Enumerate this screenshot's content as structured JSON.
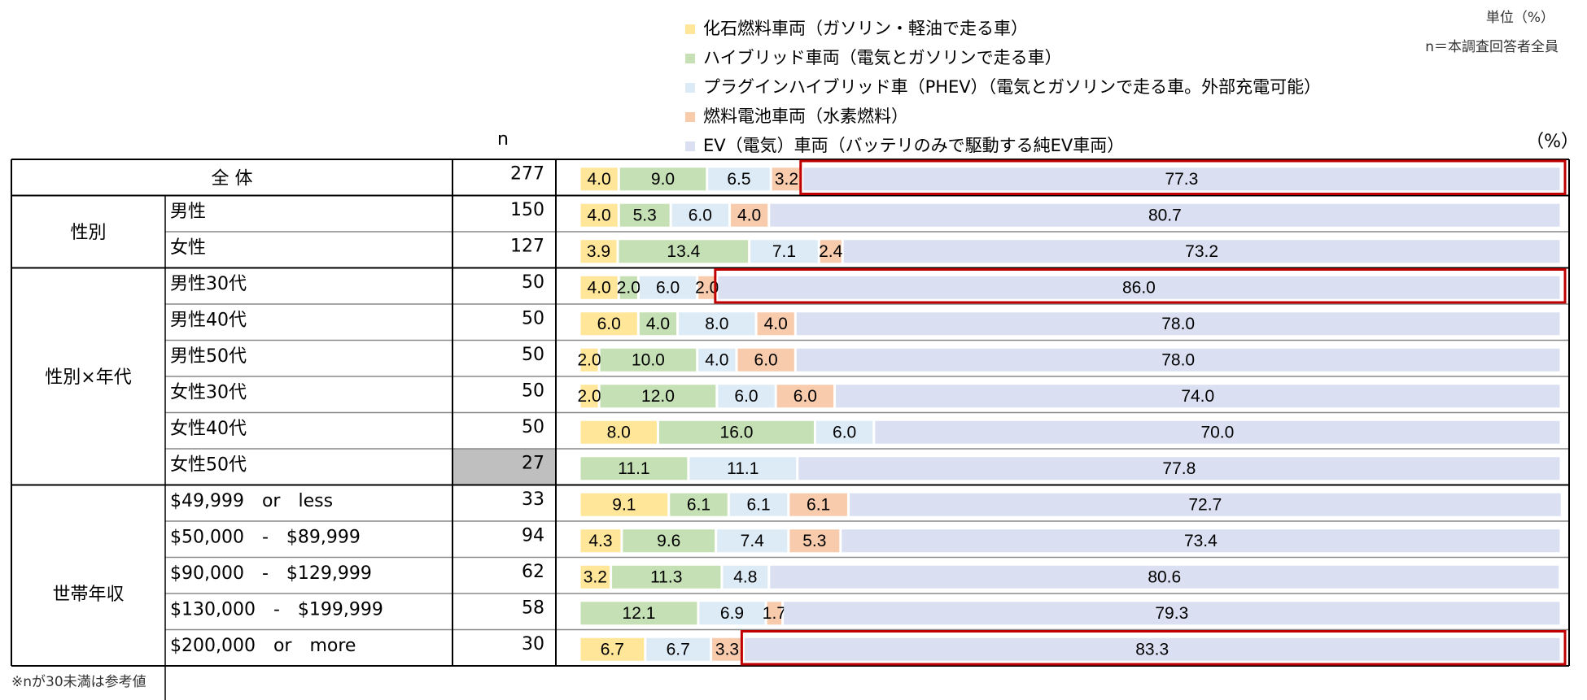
{
  "chart_data": {
    "type": "bar",
    "unit_note": "単位（%）",
    "n_note": "n＝本調査回答者全員",
    "n_header": "n",
    "percent_label": "（%）",
    "footnote": "※nが30未満は参考値",
    "xlim": [
      0,
      100
    ],
    "row_groups": [
      {
        "name": "全 体",
        "size": 1
      },
      {
        "name": "性別",
        "size": 2
      },
      {
        "name": "性別×年代",
        "size": 6
      },
      {
        "name": "世帯年収",
        "size": 6
      }
    ],
    "categories": [
      null,
      "男性",
      "女性",
      "男性30代",
      "男性40代",
      "男性50代",
      "女性30代",
      "女性40代",
      "女性50代",
      "$49,999　or　less",
      "$50,000　-　$89,999",
      "$90,000　-　$129,999",
      "$130,000　-　$199,999",
      "$200,000　or　more"
    ],
    "n": [
      277,
      150,
      127,
      50,
      50,
      50,
      50,
      50,
      27,
      33,
      94,
      62,
      58,
      30
    ],
    "shaded_n": [
      8
    ],
    "highlight_rows": [
      0,
      3,
      13
    ],
    "highlight_color": "#c00000",
    "series": [
      {
        "name": "化石燃料車両（ガソリン・軽油で走る車）",
        "color": "#ffe699",
        "values": [
          4.0,
          4.0,
          3.9,
          4.0,
          6.0,
          2.0,
          2.0,
          8.0,
          null,
          9.1,
          4.3,
          3.2,
          null,
          6.7
        ],
        "value_labels": [
          "4.0",
          "4.0",
          "3.9",
          "4.0",
          "6.0",
          "2.0",
          "2.0",
          "8.0",
          null,
          "9.1",
          "4.3",
          "3.2",
          null,
          "6.7"
        ]
      },
      {
        "name": "ハイブリッド車両（電気とガソリンで走る車）",
        "color": "#c5e0b4",
        "values": [
          9.0,
          5.3,
          13.4,
          2.0,
          4.0,
          10.0,
          12.0,
          16.0,
          11.1,
          6.1,
          9.6,
          11.3,
          12.1,
          null
        ],
        "value_labels": [
          "9.0",
          "5.3",
          "13.4",
          "2.0",
          "4.0",
          "10.0",
          "12.0",
          "16.0",
          "11.1",
          "6.1",
          "9.6",
          "11.3",
          "12.1",
          null
        ]
      },
      {
        "name": "プラグインハイブリッド車（PHEV）（電気とガソリンで走る車。外部充電可能）",
        "color": "#ddebf7",
        "values": [
          6.5,
          6.0,
          7.1,
          6.0,
          8.0,
          4.0,
          6.0,
          6.0,
          11.1,
          6.1,
          7.4,
          4.8,
          6.9,
          6.7
        ],
        "value_labels": [
          "6.5",
          "6.0",
          "7.1",
          "6.0",
          "8.0",
          "4.0",
          "6.0",
          "6.0",
          "11.1",
          "6.1",
          "7.4",
          "4.8",
          "6.9",
          "6.7"
        ]
      },
      {
        "name": "燃料電池車両（水素燃料）",
        "color": "#f8cbad",
        "values": [
          3.2,
          4.0,
          2.4,
          2.0,
          4.0,
          6.0,
          6.0,
          null,
          null,
          6.1,
          5.3,
          null,
          1.7,
          3.3
        ],
        "value_labels": [
          "3.2",
          "4.0",
          "2.4",
          "2.0",
          "4.0",
          "6.0",
          "6.0",
          null,
          null,
          "6.1",
          "5.3",
          null,
          "1.7",
          "3.3"
        ]
      },
      {
        "name": "EV（電気）車両（バッテリのみで駆動する純EV車両）",
        "color": "#dae0f2",
        "values": [
          77.3,
          80.7,
          73.2,
          86.0,
          78.0,
          78.0,
          74.0,
          70.0,
          77.8,
          72.7,
          73.4,
          80.6,
          79.3,
          83.3
        ],
        "value_labels": [
          "77.3",
          "80.7",
          "73.2",
          "86.0",
          "78.0",
          "78.0",
          "74.0",
          "70.0",
          "77.8",
          "72.7",
          "73.4",
          "80.6",
          "79.3",
          "83.3"
        ]
      }
    ]
  }
}
